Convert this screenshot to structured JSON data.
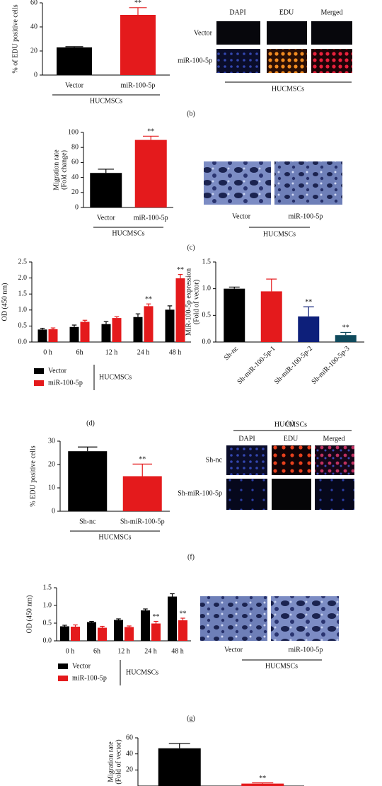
{
  "chart_data": [
    {
      "type": "bar",
      "ylabel": "% of EDU positive cells",
      "categories": [
        "Vector",
        "miR-100-5p"
      ],
      "values": [
        23,
        50
      ],
      "errors": [
        0.6,
        6
      ],
      "colors": [
        "#000000",
        "#e41a1c"
      ],
      "significance": [
        null,
        "**"
      ],
      "ylim": [
        0,
        60
      ],
      "yticks": [
        0,
        20,
        40,
        60
      ],
      "group_label": "HUCMSCs"
    },
    {
      "type": "bar",
      "ylabel": [
        "Migration rate",
        "(Fold change)"
      ],
      "categories": [
        "Vector",
        "miR-100-5p"
      ],
      "values": [
        46,
        90
      ],
      "errors": [
        5,
        5
      ],
      "colors": [
        "#000000",
        "#e41a1c"
      ],
      "significance": [
        null,
        "**"
      ],
      "ylim": [
        0,
        100
      ],
      "yticks": [
        0,
        20,
        40,
        60,
        80,
        100
      ],
      "group_label": "HUCMSCs"
    },
    {
      "type": "grouped-bar",
      "ylabel": "OD (450 nm)",
      "categories": [
        "0 h",
        "6h",
        "12 h",
        "24 h",
        "48 h"
      ],
      "series": [
        {
          "name": "Vector",
          "color": "#000000",
          "values": [
            0.39,
            0.47,
            0.56,
            0.78,
            1.01
          ],
          "errors": [
            0.04,
            0.06,
            0.08,
            0.1,
            0.12
          ],
          "significance": [
            null,
            null,
            null,
            null,
            null
          ]
        },
        {
          "name": "miR-100-5p",
          "color": "#e41a1c",
          "values": [
            0.4,
            0.63,
            0.75,
            1.12,
            1.99
          ],
          "errors": [
            0.04,
            0.05,
            0.04,
            0.07,
            0.12
          ],
          "significance": [
            null,
            null,
            null,
            "**",
            "**"
          ]
        }
      ],
      "ylim": [
        0,
        2.5
      ],
      "yticks": [
        {
          "value": 0,
          "label": "0.0"
        },
        0.5,
        {
          "value": 1,
          "label": "1.0"
        },
        1.5,
        {
          "value": 2,
          "label": "2.0"
        },
        2.5
      ],
      "group_label": "HUCMSCs"
    },
    {
      "type": "bar",
      "ylabel": [
        "MiR-100-5p expression",
        "(Fold of vector)"
      ],
      "categories": [
        "Sh-nc",
        "Sh-miR-100-5p-1",
        "Sh-miR-100-5p-2",
        "Sh-miR-100-5p-3"
      ],
      "values": [
        1.0,
        0.95,
        0.48,
        0.13
      ],
      "errors": [
        0.03,
        0.23,
        0.18,
        0.05
      ],
      "colors": [
        "#000000",
        "#e41a1c",
        "#0d1f7a",
        "#0f4a5c"
      ],
      "significance": [
        null,
        null,
        "**",
        "**"
      ],
      "ylim": [
        0,
        1.5
      ],
      "yticks": [
        {
          "value": 0,
          "label": "0.0"
        },
        0.5,
        {
          "value": 1,
          "label": "1.0"
        },
        1.5
      ]
    },
    {
      "type": "bar",
      "ylabel": "% EDU positive cells",
      "categories": [
        "Sh-nc",
        "Sh-miR-100-5p"
      ],
      "values": [
        25.7,
        15
      ],
      "errors": [
        1.8,
        5.2
      ],
      "colors": [
        "#000000",
        "#e41a1c"
      ],
      "significance": [
        null,
        "**"
      ],
      "ylim": [
        0,
        30
      ],
      "yticks": [
        0,
        10,
        20,
        30
      ],
      "group_label": "HUCMSCs"
    },
    {
      "type": "grouped-bar",
      "ylabel": "OD (450 nm)",
      "categories": [
        "0 h",
        "6h",
        "12 h",
        "24 h",
        "48 h"
      ],
      "series": [
        {
          "name": "Vector",
          "color": "#000000",
          "values": [
            0.41,
            0.53,
            0.59,
            0.86,
            1.25
          ],
          "errors": [
            0.03,
            0.02,
            0.03,
            0.04,
            0.08
          ],
          "significance": [
            null,
            null,
            null,
            null,
            null
          ]
        },
        {
          "name": "miR-100-5p",
          "color": "#e41a1c",
          "values": [
            0.4,
            0.37,
            0.39,
            0.49,
            0.58
          ],
          "errors": [
            0.05,
            0.04,
            0.03,
            0.06,
            0.06
          ],
          "significance": [
            null,
            null,
            null,
            "**",
            "**"
          ]
        }
      ],
      "ylim": [
        0,
        1.5
      ],
      "yticks": [
        {
          "value": 0,
          "label": "0.0"
        },
        0.5,
        {
          "value": 1,
          "label": "1.0"
        },
        1.5
      ],
      "group_label": "HUCMSCs"
    },
    {
      "type": "bar",
      "ylabel": [
        "Migration rate",
        "(Fold of vector)"
      ],
      "values": [
        47,
        3
      ],
      "errors": [
        6,
        1
      ],
      "colors": [
        "#000000",
        "#e41a1c"
      ],
      "significance": [
        null,
        "**"
      ],
      "ylim": [
        0,
        60
      ],
      "yticks": [
        20,
        40,
        60
      ]
    }
  ],
  "figures": {
    "b": {
      "columns": [
        "DAPI",
        "EDU",
        "Merged"
      ],
      "rows": [
        "Vector",
        "miR-100-5p"
      ],
      "group_label": "HUCMSCs"
    },
    "c": {
      "labels": [
        "Vector",
        "miR-100-5p"
      ],
      "group_label": "HUCMSCs"
    },
    "f": {
      "title": "HUCMSCs",
      "columns": [
        "DAPI",
        "EDU",
        "Merged"
      ],
      "rows": [
        "Sh-nc",
        "Sh-miR-100-5p"
      ]
    },
    "g": {
      "labels": [
        "Vector",
        "miR-100-5p"
      ],
      "group_label": "HUCMSCs"
    }
  },
  "captions": [
    "(b)",
    "(c)",
    "(d)",
    "(e)",
    "(f)",
    "(g)"
  ]
}
